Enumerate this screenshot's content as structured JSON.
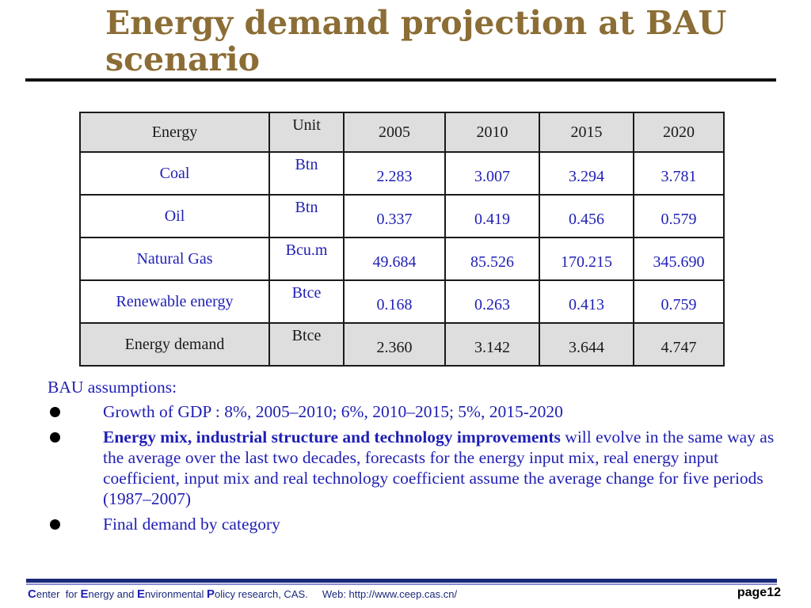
{
  "title": "Energy demand projection at BAU scenario",
  "table": {
    "headers": [
      "Energy",
      "Unit",
      "2005",
      "2010",
      "2015",
      "2020"
    ],
    "rows": [
      {
        "energy": "Coal",
        "unit": "Btn",
        "values": [
          "2.283",
          "3.007",
          "3.294",
          "3.781"
        ]
      },
      {
        "energy": "Oil",
        "unit": "Btn",
        "values": [
          "0.337",
          "0.419",
          "0.456",
          "0.579"
        ]
      },
      {
        "energy": "Natural Gas",
        "unit": "Bcu.m",
        "values": [
          "49.684",
          "85.526",
          "170.215",
          "345.690"
        ]
      },
      {
        "energy": "Renewable energy",
        "unit": "Btce",
        "values": [
          "0.168",
          "0.263",
          "0.413",
          "0.759"
        ]
      },
      {
        "energy": "Energy demand",
        "unit": "Btce",
        "values": [
          "2.360",
          "3.142",
          "3.644",
          "4.747"
        ]
      }
    ]
  },
  "assumptions": {
    "heading": "BAU assumptions:",
    "bullets": [
      {
        "bold": "",
        "text": "Growth of GDP :  8%, 2005–2010;  6%, 2010–2015;   5%, 2015-2020"
      },
      {
        "bold": "Energy mix, industrial structure and technology improvements",
        "text": " will evolve in the same way as the average over the last two decades, forecasts for the energy input mix, real energy input coefficient, input mix and real technology coefficient assume the average change for five periods (1987–2007)"
      },
      {
        "bold": "",
        "text": "Final demand by category"
      }
    ]
  },
  "footer": {
    "c_letter": "C",
    "c_rest": "enter  for ",
    "e1_letter": "E",
    "e1_rest": "nergy and ",
    "e2_letter": "E",
    "e2_rest": "nvironmental ",
    "p_letter": "P",
    "p_rest": "olicy research, CAS.     Web: http://www.ceep.cas.cn/",
    "page_label": "page",
    "page_number": "12"
  },
  "colors": {
    "title": "#8b6d35",
    "blue_text": "#1f1fb4",
    "table_shade": "#dedede",
    "footer_rule": "#1a2a7a"
  }
}
